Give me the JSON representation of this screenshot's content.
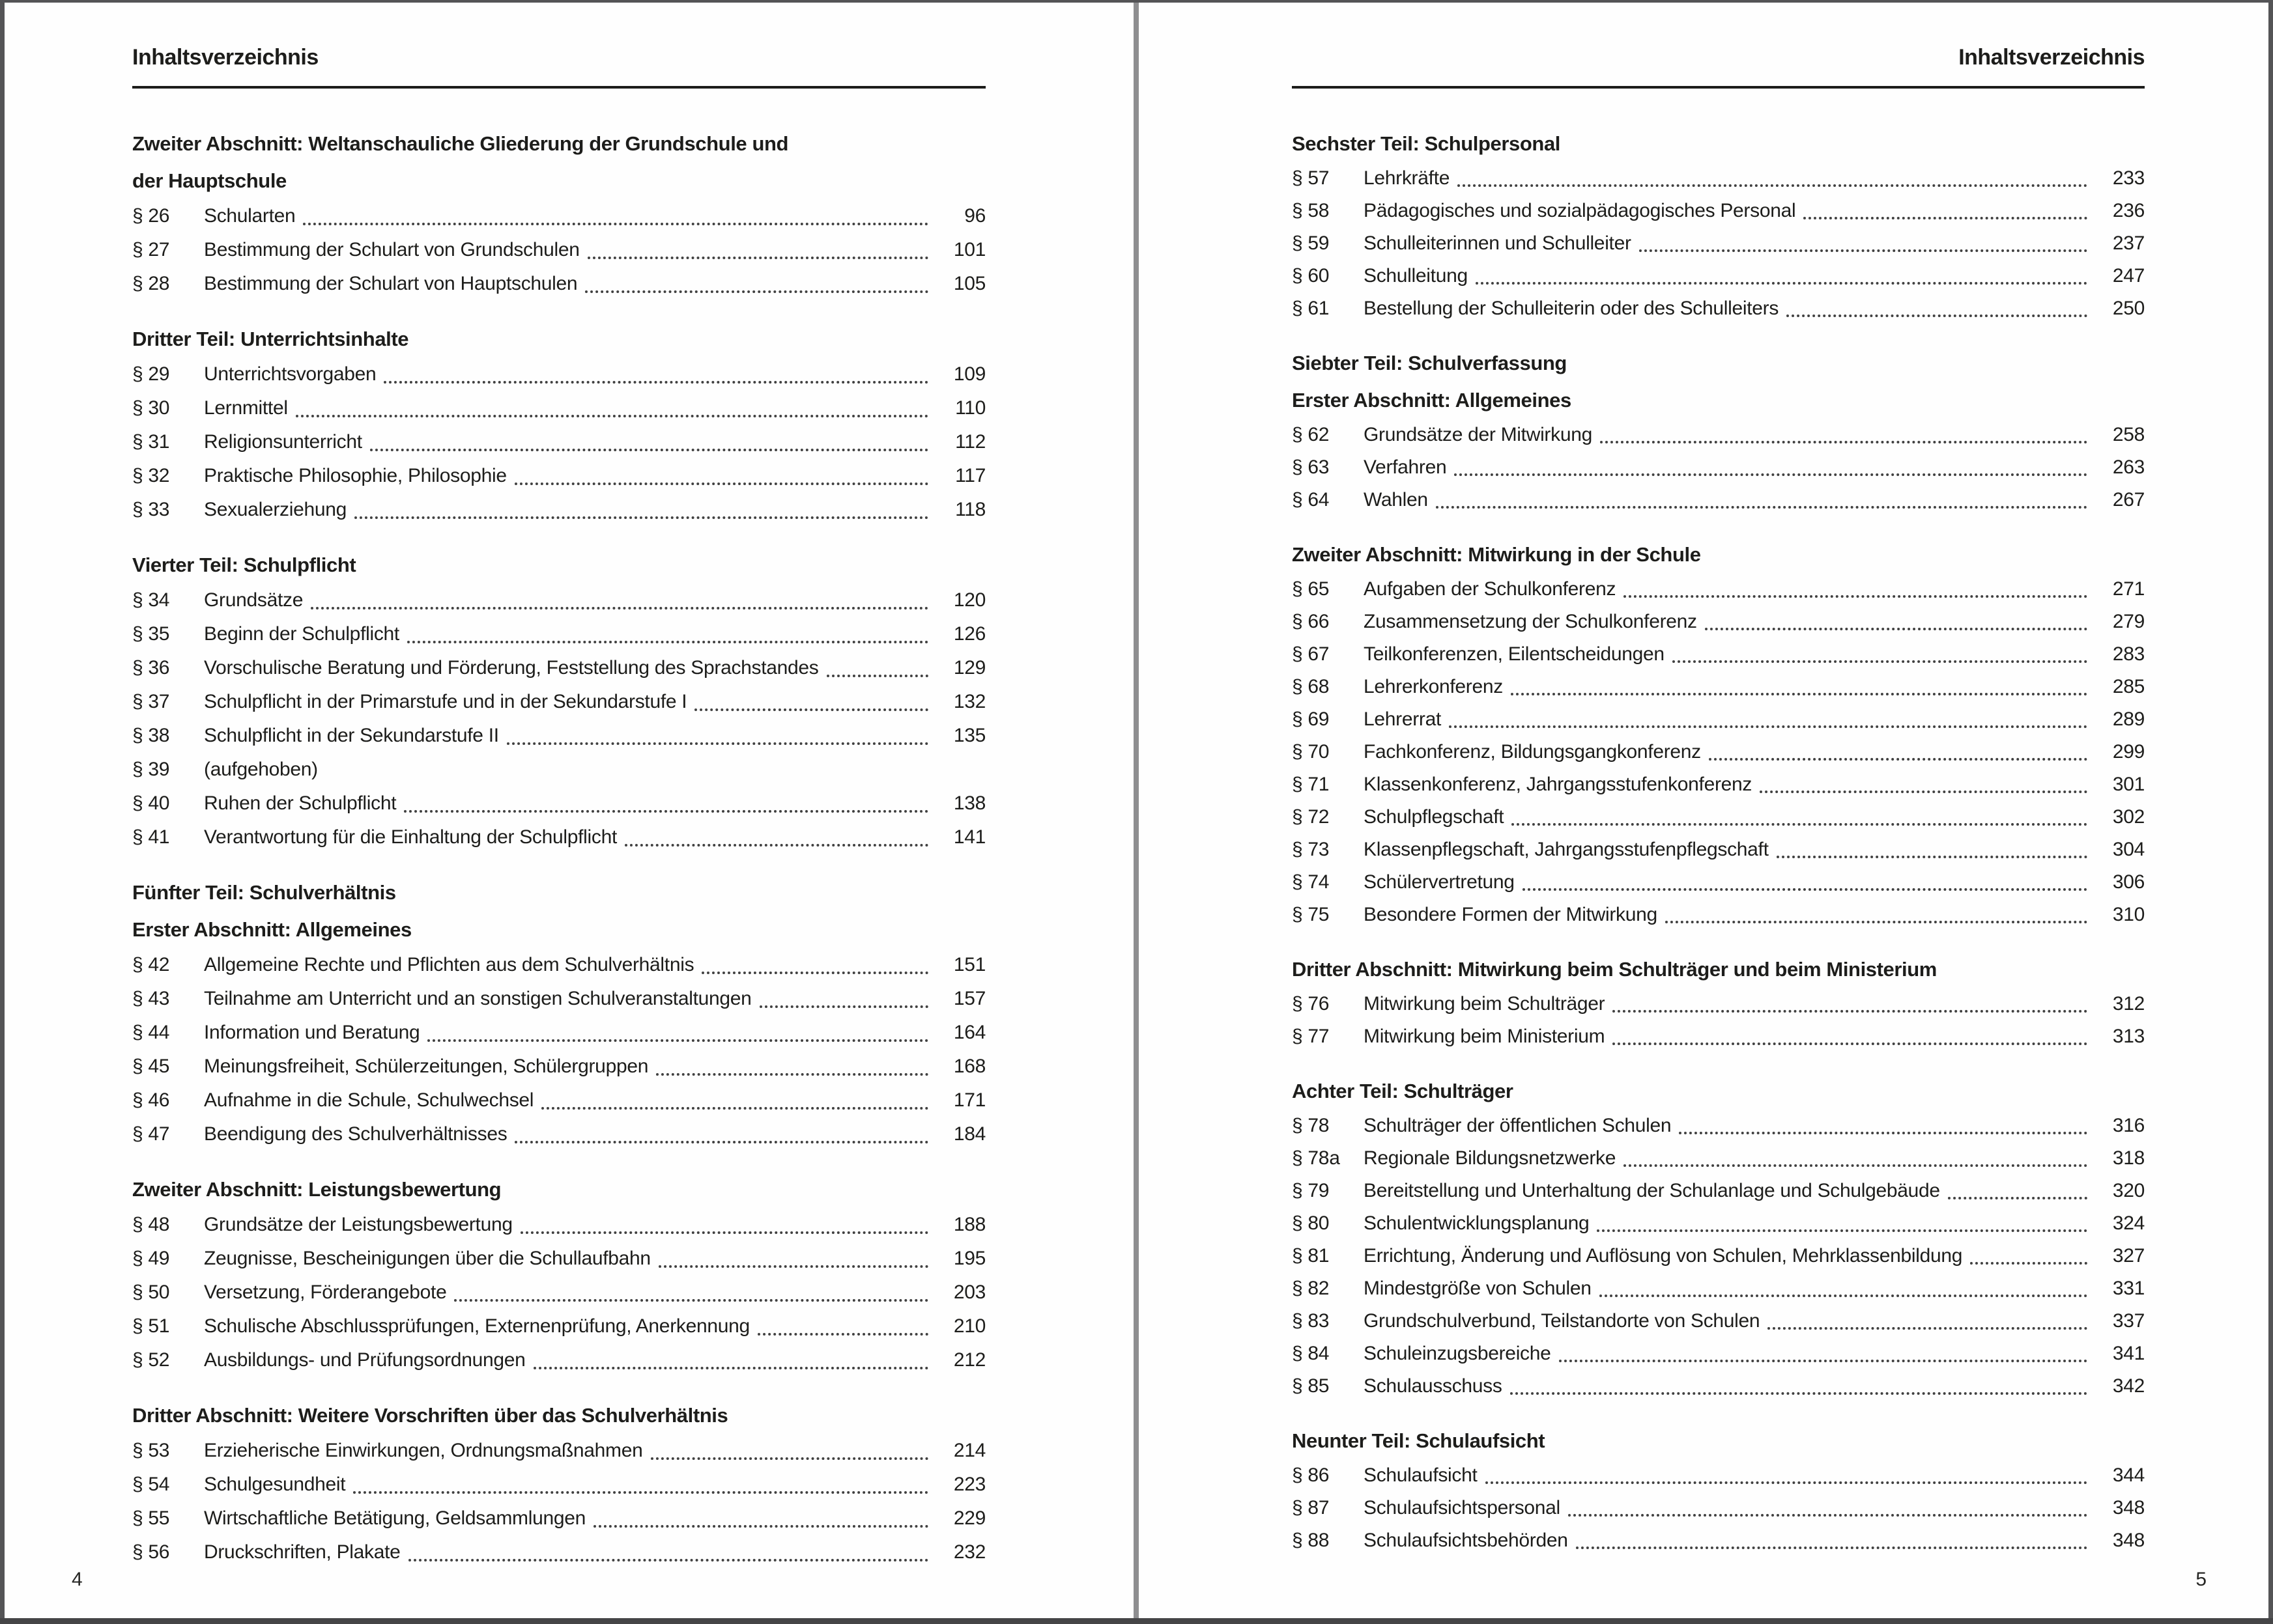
{
  "colors": {
    "page_background": "#fefefe",
    "text": "#1d1d1b",
    "frame_edge": "#545456",
    "gutter_divider": "#8e8e90",
    "dot_leader": "#414141"
  },
  "pages": [
    {
      "side": "left",
      "header": "Inhaltsverzeichnis",
      "folio": "4",
      "sections": [
        {
          "heading_lines": [
            "Zweiter Abschnitt: Weltanschauliche Gliederung der Grundschule und",
            "der Hauptschule"
          ],
          "entries": [
            {
              "label": "§ 26",
              "title": "Schularten",
              "page": "96"
            },
            {
              "label": "§ 27",
              "title": "Bestimmung der Schulart von Grundschulen",
              "page": "101"
            },
            {
              "label": "§ 28",
              "title": "Bestimmung der Schulart von Hauptschulen",
              "page": "105"
            }
          ]
        },
        {
          "heading_lines": [
            "Dritter Teil: Unterrichtsinhalte"
          ],
          "entries": [
            {
              "label": "§ 29",
              "title": "Unterrichtsvorgaben",
              "page": "109"
            },
            {
              "label": "§ 30",
              "title": "Lernmittel",
              "page": "110"
            },
            {
              "label": "§ 31",
              "title": "Religionsunterricht",
              "page": "112"
            },
            {
              "label": "§ 32",
              "title": "Praktische Philosophie, Philosophie",
              "page": "117"
            },
            {
              "label": "§ 33",
              "title": "Sexualerziehung",
              "page": "118"
            }
          ]
        },
        {
          "heading_lines": [
            "Vierter Teil: Schulpflicht"
          ],
          "entries": [
            {
              "label": "§ 34",
              "title": "Grundsätze",
              "page": "120"
            },
            {
              "label": "§ 35",
              "title": "Beginn der Schulpflicht",
              "page": "126"
            },
            {
              "label": "§ 36",
              "title": "Vorschulische Beratung und Förderung, Feststellung des Sprachstandes",
              "page": "129"
            },
            {
              "label": "§ 37",
              "title": "Schulpflicht in der Primarstufe und in der Sekundarstufe I",
              "page": "132"
            },
            {
              "label": "§ 38",
              "title": "Schulpflicht in der Sekundarstufe II",
              "page": "135"
            },
            {
              "label": "§ 39",
              "title": "(aufgehoben)",
              "page": null
            },
            {
              "label": "§ 40",
              "title": "Ruhen der Schulpflicht",
              "page": "138"
            },
            {
              "label": "§ 41",
              "title": "Verantwortung für die Einhaltung der Schulpflicht",
              "page": "141"
            }
          ]
        },
        {
          "heading_lines": [
            "Fünfter Teil: Schulverhältnis",
            "Erster Abschnitt: Allgemeines"
          ],
          "entries": [
            {
              "label": "§ 42",
              "title": "Allgemeine Rechte und Pflichten aus dem Schulverhältnis",
              "page": "151"
            },
            {
              "label": "§ 43",
              "title": "Teilnahme am Unterricht und an sonstigen Schulveranstaltungen",
              "page": "157"
            },
            {
              "label": "§ 44",
              "title": "Information und Beratung",
              "page": "164"
            },
            {
              "label": "§ 45",
              "title": "Meinungsfreiheit, Schülerzeitungen, Schülergruppen",
              "page": "168"
            },
            {
              "label": "§ 46",
              "title": "Aufnahme in die Schule, Schulwechsel",
              "page": "171"
            },
            {
              "label": "§ 47",
              "title": "Beendigung des Schulverhältnisses",
              "page": "184"
            }
          ]
        },
        {
          "heading_lines": [
            "Zweiter Abschnitt: Leistungsbewertung"
          ],
          "entries": [
            {
              "label": "§ 48",
              "title": "Grundsätze der Leistungsbewertung",
              "page": "188"
            },
            {
              "label": "§ 49",
              "title": "Zeugnisse, Bescheinigungen über die Schullaufbahn",
              "page": "195"
            },
            {
              "label": "§ 50",
              "title": "Versetzung, Förderangebote",
              "page": "203"
            },
            {
              "label": "§ 51",
              "title": "Schulische Abschlussprüfungen, Externenprüfung, Anerkennung",
              "page": "210"
            },
            {
              "label": "§ 52",
              "title": "Ausbildungs- und Prüfungsordnungen",
              "page": "212"
            }
          ]
        },
        {
          "heading_lines": [
            "Dritter Abschnitt: Weitere Vorschriften über das Schulverhältnis"
          ],
          "entries": [
            {
              "label": "§ 53",
              "title": "Erzieherische Einwirkungen, Ordnungsmaßnahmen",
              "page": "214"
            },
            {
              "label": "§ 54",
              "title": "Schulgesundheit",
              "page": "223"
            },
            {
              "label": "§ 55",
              "title": "Wirtschaftliche Betätigung, Geldsammlungen",
              "page": "229"
            },
            {
              "label": "§ 56",
              "title": "Druckschriften, Plakate",
              "page": "232"
            }
          ]
        }
      ]
    },
    {
      "side": "right",
      "header": "Inhaltsverzeichnis",
      "folio": "5",
      "sections": [
        {
          "heading_lines": [
            "Sechster Teil: Schulpersonal"
          ],
          "entries": [
            {
              "label": "§ 57",
              "title": "Lehrkräfte",
              "page": "233"
            },
            {
              "label": "§ 58",
              "title": "Pädagogisches und sozialpädagogisches Personal",
              "page": "236"
            },
            {
              "label": "§ 59",
              "title": "Schulleiterinnen und Schulleiter",
              "page": "237"
            },
            {
              "label": "§ 60",
              "title": "Schulleitung",
              "page": "247"
            },
            {
              "label": "§ 61",
              "title": "Bestellung der Schulleiterin oder des Schulleiters",
              "page": "250"
            }
          ]
        },
        {
          "heading_lines": [
            "Siebter Teil: Schulverfassung",
            "Erster Abschnitt: Allgemeines"
          ],
          "entries": [
            {
              "label": "§ 62",
              "title": "Grundsätze der Mitwirkung",
              "page": "258"
            },
            {
              "label": "§ 63",
              "title": "Verfahren",
              "page": "263"
            },
            {
              "label": "§ 64",
              "title": "Wahlen",
              "page": "267"
            }
          ]
        },
        {
          "heading_lines": [
            "Zweiter Abschnitt: Mitwirkung in der Schule"
          ],
          "entries": [
            {
              "label": "§ 65",
              "title": "Aufgaben der Schulkonferenz",
              "page": "271"
            },
            {
              "label": "§ 66",
              "title": "Zusammensetzung der Schulkonferenz",
              "page": "279"
            },
            {
              "label": "§ 67",
              "title": "Teilkonferenzen, Eilentscheidungen",
              "page": "283"
            },
            {
              "label": "§ 68",
              "title": "Lehrerkonferenz",
              "page": "285"
            },
            {
              "label": "§ 69",
              "title": "Lehrerrat",
              "page": "289"
            },
            {
              "label": "§ 70",
              "title": "Fachkonferenz, Bildungsgangkonferenz",
              "page": "299"
            },
            {
              "label": "§ 71",
              "title": "Klassenkonferenz, Jahrgangsstufenkonferenz",
              "page": "301"
            },
            {
              "label": "§ 72",
              "title": "Schulpflegschaft",
              "page": "302"
            },
            {
              "label": "§ 73",
              "title": "Klassenpflegschaft, Jahrgangsstufenpflegschaft",
              "page": "304"
            },
            {
              "label": "§ 74",
              "title": "Schülervertretung",
              "page": "306"
            },
            {
              "label": "§ 75",
              "title": "Besondere Formen der Mitwirkung",
              "page": "310"
            }
          ]
        },
        {
          "heading_lines": [
            "Dritter Abschnitt: Mitwirkung beim Schulträger und beim Ministerium"
          ],
          "entries": [
            {
              "label": "§ 76",
              "title": "Mitwirkung beim Schulträger",
              "page": "312"
            },
            {
              "label": "§ 77",
              "title": "Mitwirkung beim Ministerium",
              "page": "313"
            }
          ]
        },
        {
          "heading_lines": [
            "Achter Teil: Schulträger"
          ],
          "entries": [
            {
              "label": "§ 78",
              "title": "Schulträger der öffentlichen Schulen",
              "page": "316"
            },
            {
              "label": "§ 78a",
              "title": "Regionale Bildungsnetzwerke",
              "page": "318"
            },
            {
              "label": "§ 79",
              "title": "Bereitstellung und Unterhaltung der Schulanlage und Schulgebäude",
              "page": "320"
            },
            {
              "label": "§ 80",
              "title": "Schulentwicklungsplanung",
              "page": "324"
            },
            {
              "label": "§ 81",
              "title": "Errichtung, Änderung und Auflösung von Schulen, Mehrklassenbildung",
              "page": "327"
            },
            {
              "label": "§ 82",
              "title": "Mindestgröße von Schulen",
              "page": "331"
            },
            {
              "label": "§ 83",
              "title": "Grundschulverbund, Teilstandorte von Schulen",
              "page": "337"
            },
            {
              "label": "§ 84",
              "title": "Schuleinzugsbereiche",
              "page": "341"
            },
            {
              "label": "§ 85",
              "title": "Schulausschuss",
              "page": "342"
            }
          ]
        },
        {
          "heading_lines": [
            "Neunter Teil: Schulaufsicht"
          ],
          "entries": [
            {
              "label": "§ 86",
              "title": "Schulaufsicht",
              "page": "344"
            },
            {
              "label": "§ 87",
              "title": "Schulaufsichtspersonal",
              "page": "348"
            },
            {
              "label": "§ 88",
              "title": "Schulaufsichtsbehörden",
              "page": "348"
            }
          ]
        }
      ]
    }
  ]
}
